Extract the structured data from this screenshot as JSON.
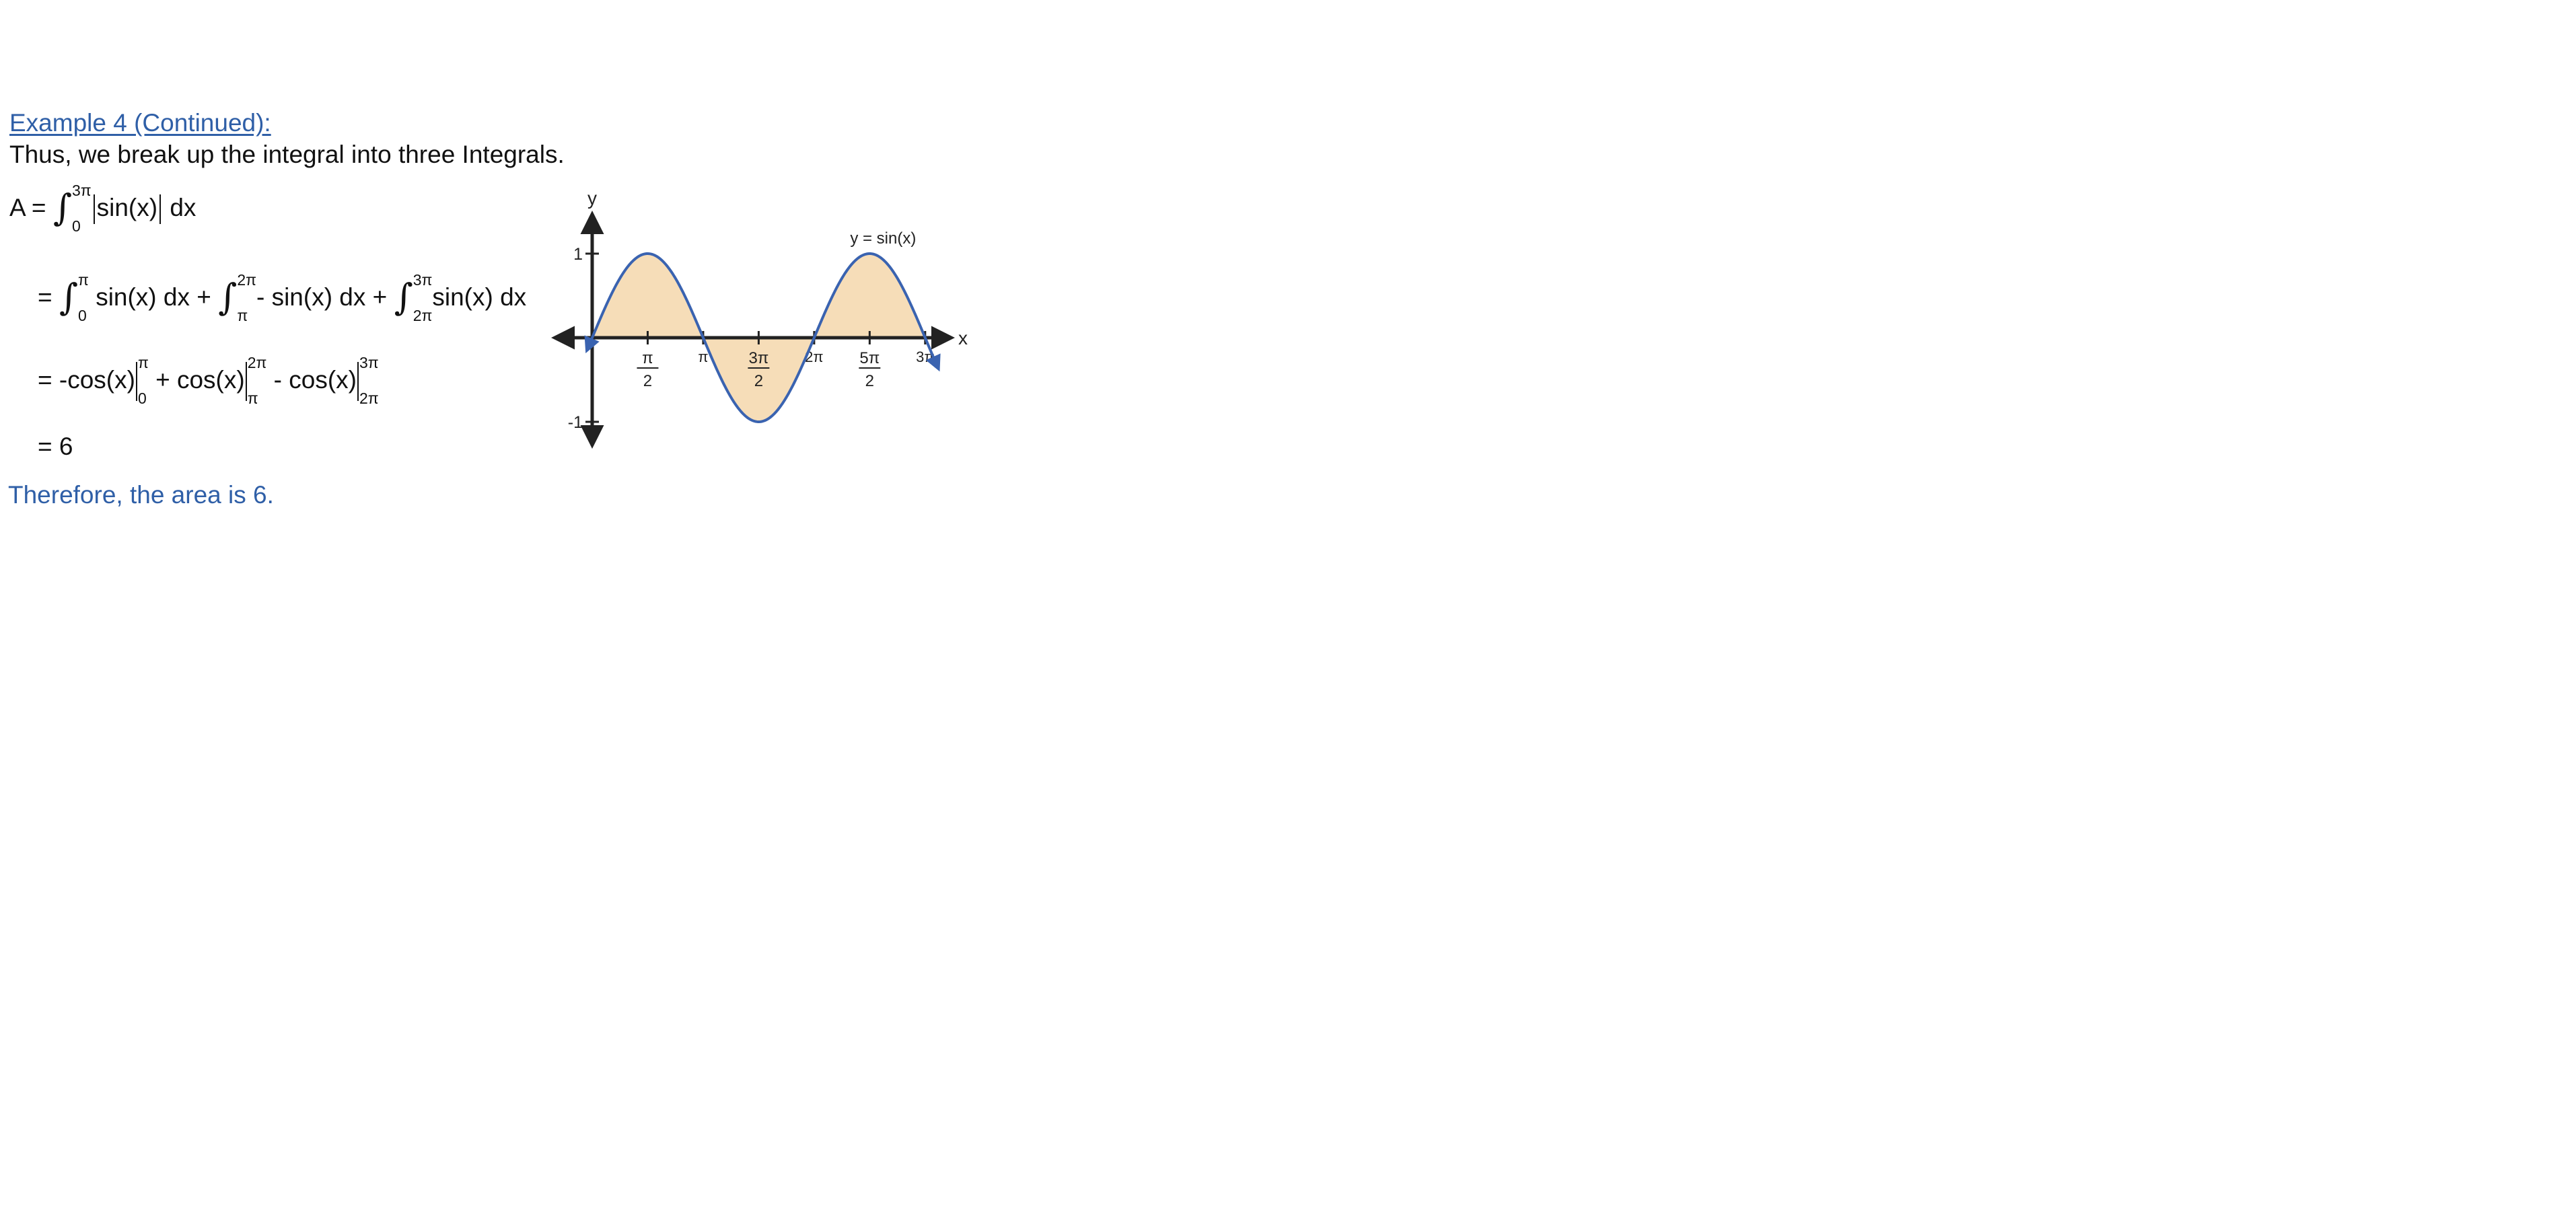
{
  "heading": "Example 4 (Continued):",
  "intro": "Thus, we break up the integral into three Integrals.",
  "conclusion": "Therefore, the area is 6.",
  "equations": {
    "line1": {
      "lhs": "A =",
      "integral": {
        "upper": "3π",
        "lower": "0",
        "integrand": "sin(x)",
        "dx": "dx"
      }
    },
    "line2": {
      "eq": "=",
      "integral1": {
        "upper": "π",
        "lower": "0",
        "integrand": "sin(x) dx"
      },
      "plus1": "+",
      "integral2": {
        "upper": "2π",
        "lower": "π",
        "integrand": "- sin(x) dx"
      },
      "plus2": "+",
      "integral3": {
        "upper": "3π",
        "lower": "2π",
        "integrand": "sin(x) dx"
      }
    },
    "line3": {
      "eq": "=",
      "term1": "-cos(x)",
      "eval1": {
        "upper": "π",
        "lower": "0"
      },
      "plus": "+",
      "term2": "cos(x)",
      "eval2": {
        "upper": "2π",
        "lower": "π"
      },
      "minus": "-",
      "term3": "cos(x)",
      "eval3": {
        "upper": "3π",
        "lower": "2π"
      }
    },
    "line4": {
      "eq": "= 6"
    }
  },
  "graph": {
    "x_axis_label": "x",
    "y_axis_label": "y",
    "curve_label": "y = sin(x)",
    "y_ticks": [
      {
        "value": 1,
        "label": "1"
      },
      {
        "value": -1,
        "label": "-1"
      }
    ],
    "x_ticks": [
      {
        "value": 1.5708,
        "num": "π",
        "den": "2"
      },
      {
        "value": 3.1416,
        "label": "π"
      },
      {
        "value": 4.7124,
        "num": "3π",
        "den": "2"
      },
      {
        "value": 6.2832,
        "label": "2π"
      },
      {
        "value": 7.854,
        "num": "5π",
        "den": "2"
      },
      {
        "value": 9.4248,
        "label": "3π"
      }
    ],
    "x_range": [
      -0.15,
      9.9
    ],
    "y_range": [
      -1.15,
      1.15
    ],
    "shade_range": [
      0,
      9.4248
    ],
    "curve_color": "#3a63b0",
    "shade_color": "#f6ddb8",
    "axis_color": "#222222"
  }
}
